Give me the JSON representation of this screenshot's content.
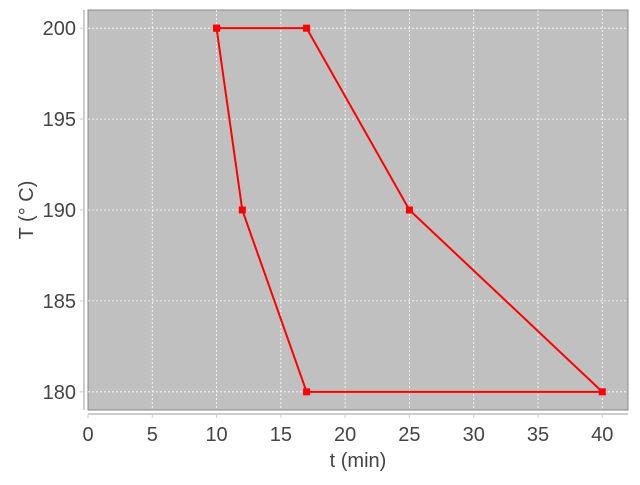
{
  "chart_data": {
    "type": "line",
    "title": "",
    "xlabel": "t (min)",
    "ylabel": "T (° C)",
    "xlim": [
      0,
      42
    ],
    "ylim": [
      179,
      201
    ],
    "xticks": [
      0,
      5,
      10,
      15,
      20,
      25,
      30,
      35,
      40
    ],
    "yticks": [
      180,
      185,
      190,
      195,
      200
    ],
    "grid": true,
    "legend": "none",
    "series": [
      {
        "x": [
          10,
          17,
          25,
          40,
          17,
          12,
          10
        ],
        "y": [
          200,
          200,
          190,
          180,
          180,
          190,
          200
        ],
        "color": "#ff0000",
        "marker": "square"
      }
    ],
    "colors": {
      "plot_background": "#c0c0c0",
      "grid": "#ffffff",
      "series": "#ff0000"
    }
  }
}
